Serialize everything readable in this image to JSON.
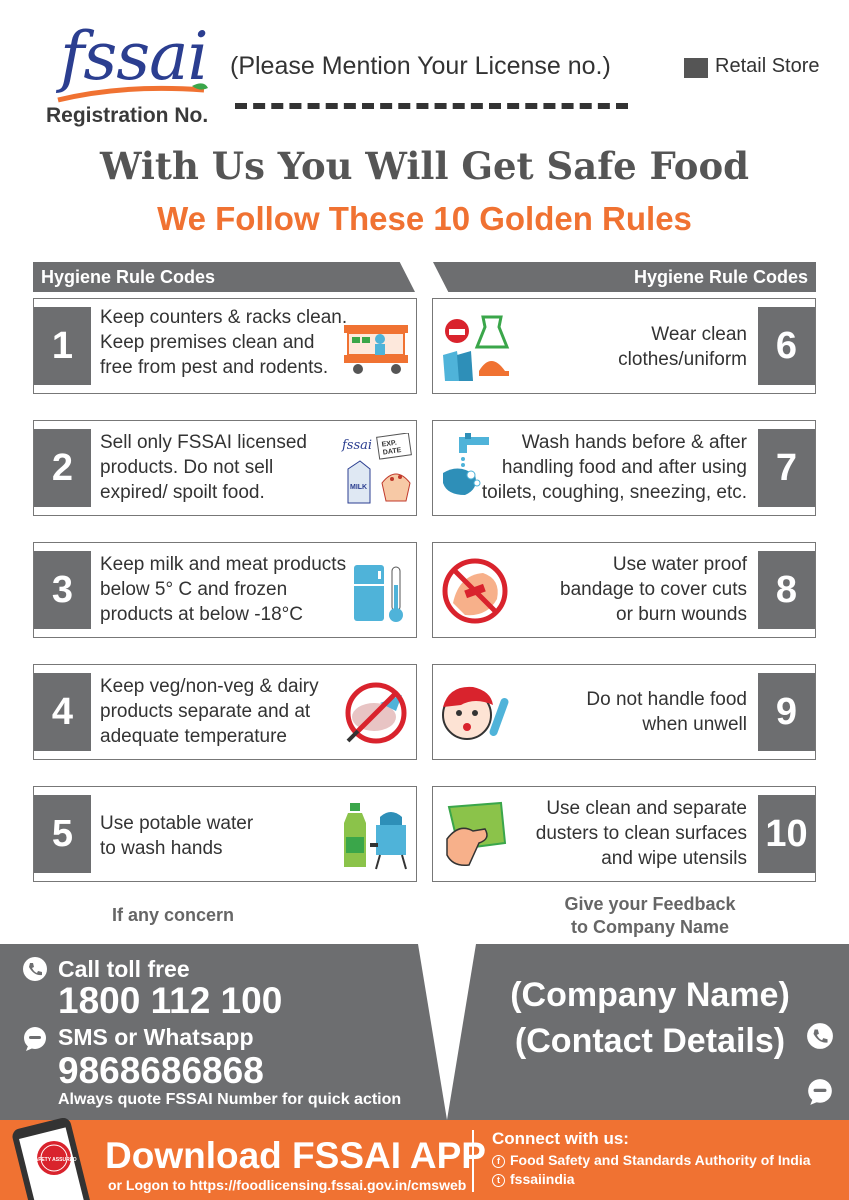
{
  "header": {
    "logo_text": "fssai",
    "registration_label": "Registration No.",
    "license_prompt": "(Please Mention Your License no.)",
    "store_type": "Retail Store"
  },
  "title": "With Us You Will Get Safe Food",
  "subtitle": "We Follow These 10 Golden Rules",
  "section_label_left": "Hygiene Rule Codes",
  "section_label_right": "Hygiene Rule Codes",
  "rules_left": [
    {
      "num": "1",
      "text": "Keep counters & racks clean.\nKeep premises clean and\nfree from pest and rodents.",
      "icon": "food-cart-icon"
    },
    {
      "num": "2",
      "text": "Sell only FSSAI licensed\nproducts. Do not sell\nexpired/ spoilt food.",
      "icon": "licensed-products-icon",
      "icon_labels": [
        "fssai",
        "EXP.",
        "DATE",
        "MILK"
      ]
    },
    {
      "num": "3",
      "text": "Keep milk and meat products\nbelow 5° C and frozen\nproducts at below  -18°C",
      "icon": "fridge-thermometer-icon"
    },
    {
      "num": "4",
      "text": "Keep veg/non-veg & dairy\nproducts separate and at\nadequate temperature",
      "icon": "no-mixing-icon"
    },
    {
      "num": "5",
      "text": "Use potable water\nto wash hands",
      "icon": "water-bottle-icon"
    }
  ],
  "rules_right": [
    {
      "num": "6",
      "text": "Wear clean\nclothes/uniform",
      "icon": "uniform-icon"
    },
    {
      "num": "7",
      "text": "Wash hands before & after\nhandling food and after using\ntoilets, coughing, sneezing, etc.",
      "icon": "hand-wash-icon"
    },
    {
      "num": "8",
      "text": "Use water proof\nbandage to cover cuts\nor burn wounds",
      "icon": "bandage-icon"
    },
    {
      "num": "9",
      "text": "Do not handle food\nwhen unwell",
      "icon": "sick-person-icon"
    },
    {
      "num": "10",
      "text": "Use clean and separate\ndusters to clean surfaces\nand wipe utensils",
      "icon": "duster-icon"
    }
  ],
  "concern_label": "If any concern",
  "feedback_label": "Give your Feedback\nto Company Name",
  "contact": {
    "toll_label": "Call toll free",
    "toll_number": "1800 112 100",
    "sms_label": "SMS or Whatsapp",
    "sms_number": "9868686868",
    "quote_note": "Always quote FSSAI Number for quick action"
  },
  "company_block": "(Company Name)\n(Contact Details)",
  "footer": {
    "app_title": "Download FSSAI APP",
    "logon_text": "or Logon to https://foodlicensing.fssai.gov.in/cmsweb",
    "connect_label": "Connect with us:",
    "facebook": "Food Safety and Standards Authority of India",
    "twitter": "fssaiindia",
    "app_badge": "SAFETY ASSURED"
  },
  "colors": {
    "accent": "#f07232",
    "gray": "#6d6e70",
    "logo_blue": "#2b3e90",
    "leaf_green": "#3aa64a"
  }
}
